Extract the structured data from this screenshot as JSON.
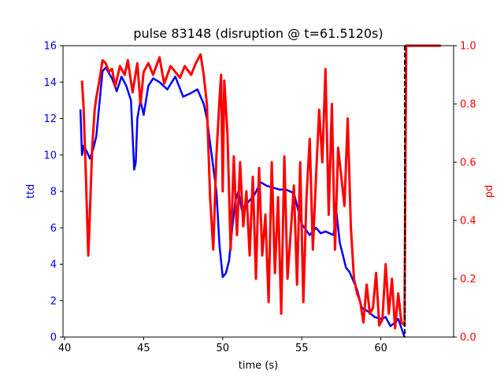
{
  "chart_data": {
    "type": "line",
    "title": "pulse 83148 (disruption @ t=61.5120s)",
    "xlabel": "time (s)",
    "ylabel_left": "ttd",
    "ylabel_right": "pd",
    "xlim": [
      39.9,
      64.6
    ],
    "ylim_left": [
      0,
      16
    ],
    "ylim_right": [
      0,
      1
    ],
    "xticks": [
      "40",
      "45",
      "50",
      "55",
      "60"
    ],
    "yticks_left": [
      "0",
      "2",
      "4",
      "6",
      "8",
      "10",
      "12",
      "14",
      "16"
    ],
    "yticks_right": [
      "0.0",
      "0.2",
      "0.4",
      "0.6",
      "0.8",
      "1.0"
    ],
    "grid": false,
    "colors": {
      "ttd": "#0000ff",
      "pd": "#ff0000",
      "disruption": "#000000"
    },
    "disruption_time": 61.512,
    "series": [
      {
        "axis": "left",
        "x": [
          41.0,
          41.1,
          41.2,
          41.4,
          41.6,
          41.8,
          42.0,
          42.2,
          42.4,
          42.6,
          42.8,
          43.0,
          43.3,
          43.6,
          43.9,
          44.2,
          44.4,
          44.5,
          44.6,
          44.8,
          45.0,
          45.3,
          45.6,
          46.0,
          46.5,
          47.0,
          47.5,
          48.0,
          48.4,
          48.8,
          49.0,
          49.3,
          49.6,
          49.8,
          50.0,
          50.2,
          50.4,
          50.6,
          50.8,
          51.0,
          51.2,
          51.5,
          52.0,
          52.4,
          52.8,
          53.2,
          53.6,
          54.0,
          54.5,
          55.0,
          55.5,
          55.9,
          56.2,
          56.5,
          57.0,
          57.2,
          57.4,
          57.6,
          57.8,
          58.0,
          58.2,
          58.5,
          58.8,
          59.2,
          59.6,
          60.0,
          60.3,
          60.6,
          60.9,
          61.1,
          61.3,
          61.5
        ],
        "y": [
          12.5,
          10.0,
          10.5,
          10.2,
          9.8,
          10.3,
          11.0,
          12.8,
          14.6,
          14.8,
          14.5,
          14.2,
          13.5,
          14.3,
          13.8,
          13.0,
          9.2,
          9.6,
          12.0,
          13.0,
          12.2,
          13.8,
          14.2,
          14.0,
          13.6,
          14.3,
          13.2,
          13.4,
          13.6,
          12.8,
          12.0,
          10.0,
          8.0,
          5.0,
          3.3,
          3.5,
          4.2,
          6.0,
          7.5,
          8.0,
          7.0,
          7.3,
          7.8,
          8.5,
          8.3,
          8.2,
          8.1,
          8.1,
          7.9,
          6.2,
          5.6,
          6.0,
          5.7,
          5.8,
          5.6,
          6.8,
          5.2,
          4.5,
          3.8,
          3.6,
          3.2,
          2.6,
          1.6,
          1.4,
          1.1,
          1.0,
          1.1,
          0.6,
          0.8,
          1.0,
          0.5,
          0.0
        ]
      },
      {
        "axis": "right",
        "x": [
          41.1,
          41.2,
          41.35,
          41.5,
          41.6,
          41.75,
          41.9,
          42.0,
          42.2,
          42.4,
          42.6,
          42.8,
          43.0,
          43.2,
          43.5,
          43.8,
          44.0,
          44.3,
          44.6,
          44.8,
          45.0,
          45.3,
          45.6,
          46.0,
          46.3,
          46.7,
          47.0,
          47.3,
          47.6,
          48.0,
          48.3,
          48.6,
          48.8,
          49.0,
          49.2,
          49.4,
          49.6,
          49.8,
          49.9,
          50.0,
          50.1,
          50.3,
          50.5,
          50.7,
          50.9,
          51.1,
          51.3,
          51.5,
          51.7,
          51.9,
          52.1,
          52.3,
          52.5,
          52.7,
          52.9,
          53.1,
          53.3,
          53.5,
          53.7,
          53.9,
          54.1,
          54.3,
          54.5,
          54.7,
          54.9,
          55.1,
          55.3,
          55.5,
          55.7,
          55.9,
          56.1,
          56.3,
          56.5,
          56.7,
          56.9,
          57.1,
          57.3,
          57.5,
          57.7,
          57.9,
          58.1,
          58.3,
          58.5,
          58.7,
          58.9,
          59.1,
          59.3,
          59.5,
          59.7,
          59.9,
          60.1,
          60.3,
          60.5,
          60.7,
          60.9,
          61.1,
          61.3,
          61.5,
          61.55,
          61.6,
          62.0,
          62.5,
          63.0,
          63.5,
          63.8
        ],
        "y": [
          0.88,
          0.79,
          0.55,
          0.28,
          0.42,
          0.65,
          0.78,
          0.82,
          0.88,
          0.95,
          0.94,
          0.91,
          0.92,
          0.86,
          0.93,
          0.9,
          0.95,
          0.84,
          0.94,
          0.8,
          0.91,
          0.94,
          0.9,
          0.96,
          0.87,
          0.93,
          0.91,
          0.89,
          0.93,
          0.9,
          0.94,
          0.97,
          0.9,
          0.8,
          0.48,
          0.3,
          0.62,
          0.82,
          0.9,
          0.5,
          0.88,
          0.7,
          0.3,
          0.62,
          0.35,
          0.6,
          0.38,
          0.5,
          0.28,
          0.55,
          0.2,
          0.58,
          0.28,
          0.42,
          0.12,
          0.6,
          0.22,
          0.48,
          0.08,
          0.62,
          0.2,
          0.36,
          0.52,
          0.18,
          0.6,
          0.12,
          0.48,
          0.68,
          0.3,
          0.55,
          0.78,
          0.6,
          0.92,
          0.42,
          0.8,
          0.3,
          0.65,
          0.55,
          0.45,
          0.75,
          0.38,
          0.2,
          0.15,
          0.12,
          0.05,
          0.18,
          0.08,
          0.1,
          0.22,
          0.04,
          0.06,
          0.25,
          0.08,
          0.2,
          0.03,
          0.15,
          0.05,
          0.04,
          0.6,
          1.0,
          1.0,
          1.0,
          1.0,
          1.0,
          1.0
        ]
      }
    ]
  }
}
